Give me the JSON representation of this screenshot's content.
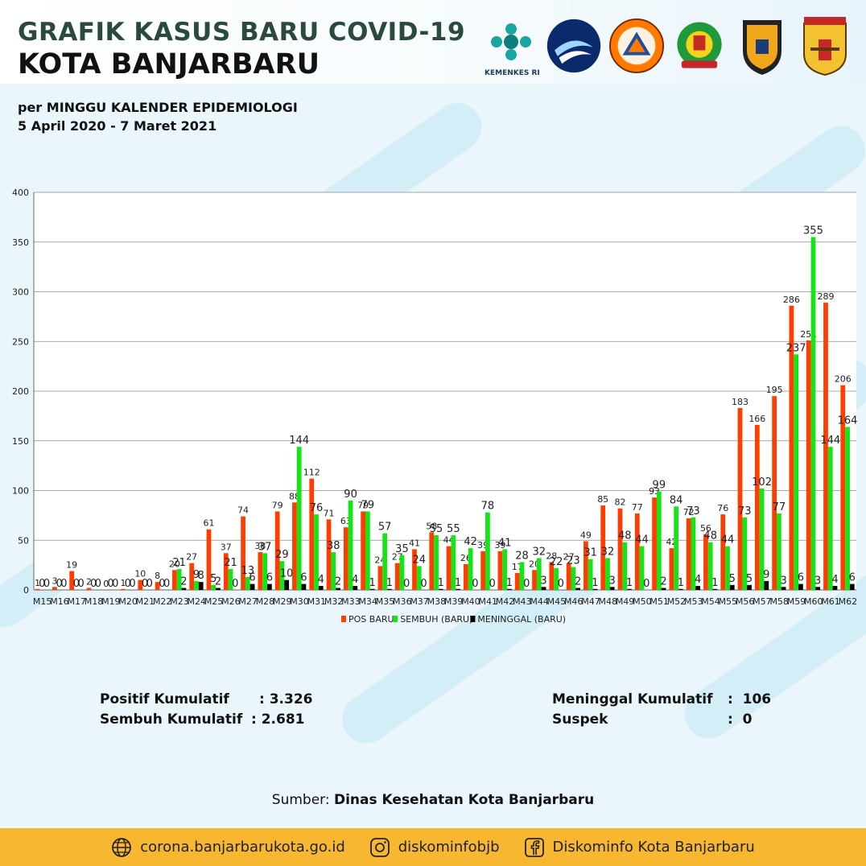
{
  "header": {
    "title_line1": "GRAFIK KASUS BARU COVID-19",
    "title_line2": "KOTA BANJARBARU",
    "kemenkes_label": "KEMENKES RI",
    "logos": [
      "kemenkes-logo",
      "kominfo-logo",
      "bpbd-logo",
      "antasari-logo",
      "polda-kalsel-logo",
      "banjarbaru-logo"
    ]
  },
  "subtitle": {
    "line1": "per MINGGU KALENDER EPIDEMIOLOGI",
    "line2": "5 April 2020 - 7 Maret 2021"
  },
  "chart_data": {
    "type": "bar",
    "categories": [
      "M15",
      "M16",
      "M17",
      "M18",
      "M19",
      "M20",
      "M21",
      "M22",
      "M23",
      "M24",
      "M25",
      "M26",
      "M27",
      "M28",
      "M29",
      "M30",
      "M31",
      "M32",
      "M33",
      "M34",
      "M35",
      "M36",
      "M37",
      "M38",
      "M39",
      "M40",
      "M41",
      "M42",
      "M43",
      "M44",
      "M45",
      "M46",
      "M47",
      "M48",
      "M49",
      "M50",
      "M51",
      "M52",
      "M53",
      "M54",
      "M55",
      "M56",
      "M57",
      "M58",
      "M59",
      "M60",
      "M61",
      "M62"
    ],
    "series": [
      {
        "name": "POS BARU",
        "color": "#ff3d00",
        "values": [
          1,
          3,
          19,
          2,
          0,
          1,
          10,
          8,
          20,
          27,
          61,
          37,
          74,
          38,
          79,
          88,
          112,
          71,
          63,
          79,
          24,
          27,
          41,
          58,
          44,
          26,
          39,
          39,
          17,
          20,
          28,
          27,
          49,
          85,
          82,
          77,
          93,
          42,
          72,
          56,
          76,
          183,
          166,
          195,
          286,
          251,
          289,
          206
        ]
      },
      {
        "name": "SEMBUH (BARU)",
        "color": "#14e514",
        "values": [
          0,
          0,
          0,
          0,
          0,
          0,
          0,
          0,
          21,
          9,
          5,
          21,
          13,
          37,
          29,
          144,
          76,
          38,
          90,
          79,
          57,
          35,
          24,
          55,
          55,
          42,
          78,
          41,
          28,
          32,
          22,
          23,
          31,
          32,
          48,
          44,
          99,
          84,
          73,
          48,
          44,
          73,
          102,
          77,
          237,
          355,
          144,
          164
        ]
      },
      {
        "name": "MENINGGAL (BARU)",
        "color": "#000000",
        "values": [
          0,
          0,
          0,
          0,
          0,
          0,
          0,
          0,
          2,
          8,
          2,
          0,
          6,
          6,
          10,
          6,
          4,
          2,
          4,
          1,
          1,
          0,
          0,
          1,
          1,
          0,
          0,
          1,
          0,
          3,
          0,
          2,
          1,
          3,
          1,
          0,
          2,
          1,
          4,
          1,
          5,
          5,
          9,
          3,
          6,
          3,
          4,
          6
        ]
      }
    ],
    "ylim": [
      0,
      400
    ],
    "yticks": [
      0,
      50,
      100,
      150,
      200,
      250,
      300,
      350,
      400
    ],
    "grid": true,
    "legend_position": "bottom"
  },
  "stats": {
    "positif_label": "Positif Kumulatif",
    "positif_value": ": 3.326",
    "sembuh_label": "Sembuh Kumulatif",
    "sembuh_value": ": 2.681",
    "meninggal_label": "Meninggal Kumulatif",
    "meninggal_value": ":  106",
    "suspek_label": "Suspek",
    "suspek_value": ":  0"
  },
  "source": {
    "prefix": "Sumber: ",
    "name": "Dinas Kesehatan Kota Banjarbaru"
  },
  "footer": {
    "website": "corona.banjarbarukota.go.id",
    "instagram": "diskominfobjb",
    "facebook": "Diskominfo Kota Banjarbaru"
  }
}
